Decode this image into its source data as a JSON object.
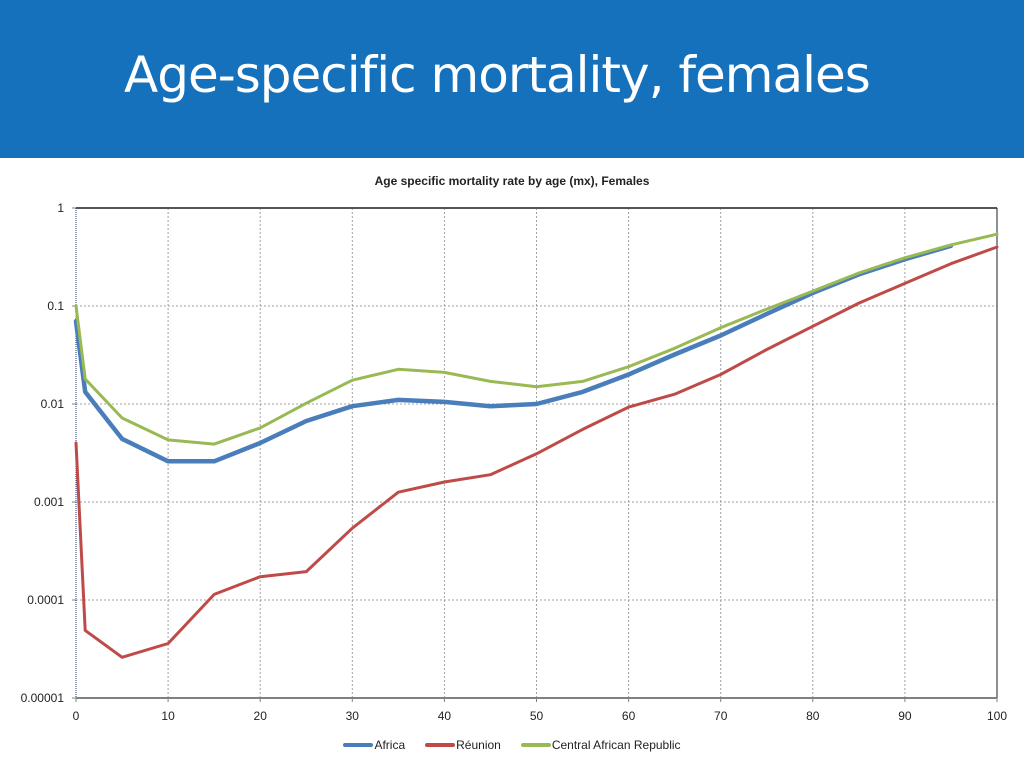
{
  "slide": {
    "title": "Age-specific mortality, females",
    "banner_color": "#1571bb"
  },
  "chart_data": {
    "type": "line",
    "title": "Age specific mortality rate by age (mx), Females",
    "xlabel": "",
    "ylabel": "",
    "xlim": [
      0,
      100
    ],
    "ylim": [
      1e-05,
      1
    ],
    "yscale": "log",
    "grid": true,
    "legend_position": "bottom",
    "x_ticks": [
      "0",
      "10",
      "20",
      "30",
      "40",
      "50",
      "60",
      "70",
      "80",
      "90",
      "100"
    ],
    "y_ticks": [
      "1",
      "0.1",
      "0.01",
      "0.001",
      "0.0001",
      "0.00001"
    ],
    "series": [
      {
        "name": "Africa",
        "color": "#4a7ebb",
        "x": [
          0,
          1,
          5,
          10,
          15,
          20,
          25,
          30,
          35,
          40,
          45,
          50,
          55,
          60,
          65,
          70,
          75,
          80,
          85,
          90,
          95
        ],
        "values": [
          0.07,
          0.0133,
          0.0044,
          0.0026,
          0.0026,
          0.004,
          0.0067,
          0.0095,
          0.011,
          0.0105,
          0.0095,
          0.01,
          0.0133,
          0.02,
          0.032,
          0.05,
          0.083,
          0.136,
          0.21,
          0.3,
          0.41
        ]
      },
      {
        "name": "Réunion",
        "color": "#be4b48",
        "x": [
          0,
          1,
          5,
          10,
          15,
          20,
          25,
          30,
          35,
          40,
          45,
          50,
          55,
          60,
          65,
          70,
          75,
          80,
          85,
          90,
          95,
          100
        ],
        "values": [
          0.004,
          4.9e-05,
          2.6e-05,
          3.6e-05,
          0.000114,
          0.000173,
          0.000195,
          0.00054,
          0.00126,
          0.0016,
          0.0019,
          0.0031,
          0.0055,
          0.0093,
          0.0126,
          0.02,
          0.036,
          0.062,
          0.107,
          0.17,
          0.27,
          0.4
        ]
      },
      {
        "name": "Central African Republic",
        "color": "#98b954",
        "x": [
          0,
          1,
          5,
          10,
          15,
          20,
          25,
          30,
          35,
          40,
          45,
          50,
          55,
          60,
          65,
          70,
          75,
          80,
          85,
          90,
          95,
          100
        ],
        "values": [
          0.1,
          0.018,
          0.0072,
          0.0043,
          0.0039,
          0.0057,
          0.0102,
          0.0175,
          0.0226,
          0.021,
          0.017,
          0.015,
          0.017,
          0.024,
          0.037,
          0.06,
          0.093,
          0.142,
          0.217,
          0.31,
          0.42,
          0.54
        ]
      }
    ]
  }
}
